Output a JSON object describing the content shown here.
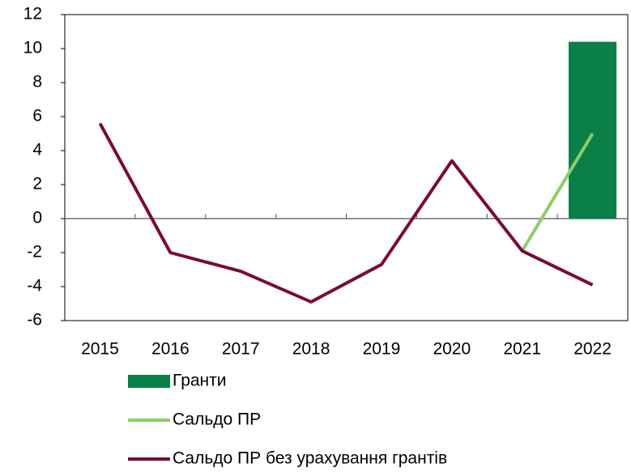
{
  "chart_data": {
    "type": "bar",
    "categories": [
      "2015",
      "2016",
      "2017",
      "2018",
      "2019",
      "2020",
      "2021",
      "2022"
    ],
    "series": [
      {
        "name": "Гранти",
        "type": "bar",
        "color": "#0a7f48",
        "values": [
          null,
          null,
          null,
          null,
          null,
          null,
          null,
          10.4
        ]
      },
      {
        "name": "Сальдо ПР",
        "type": "line",
        "color": "#8fcc6a",
        "values": [
          null,
          null,
          null,
          null,
          null,
          null,
          -1.9,
          5.0
        ]
      },
      {
        "name": "Сальдо ПР без урахування грантів",
        "type": "line",
        "color": "#7a0a36",
        "values": [
          5.6,
          -2.0,
          -3.1,
          -4.9,
          -2.7,
          3.4,
          -1.9,
          -3.9
        ]
      }
    ],
    "ylim": [
      -6,
      12
    ],
    "yticks": [
      -6,
      -4,
      -2,
      0,
      2,
      4,
      6,
      8,
      10,
      12
    ],
    "grid": false
  }
}
